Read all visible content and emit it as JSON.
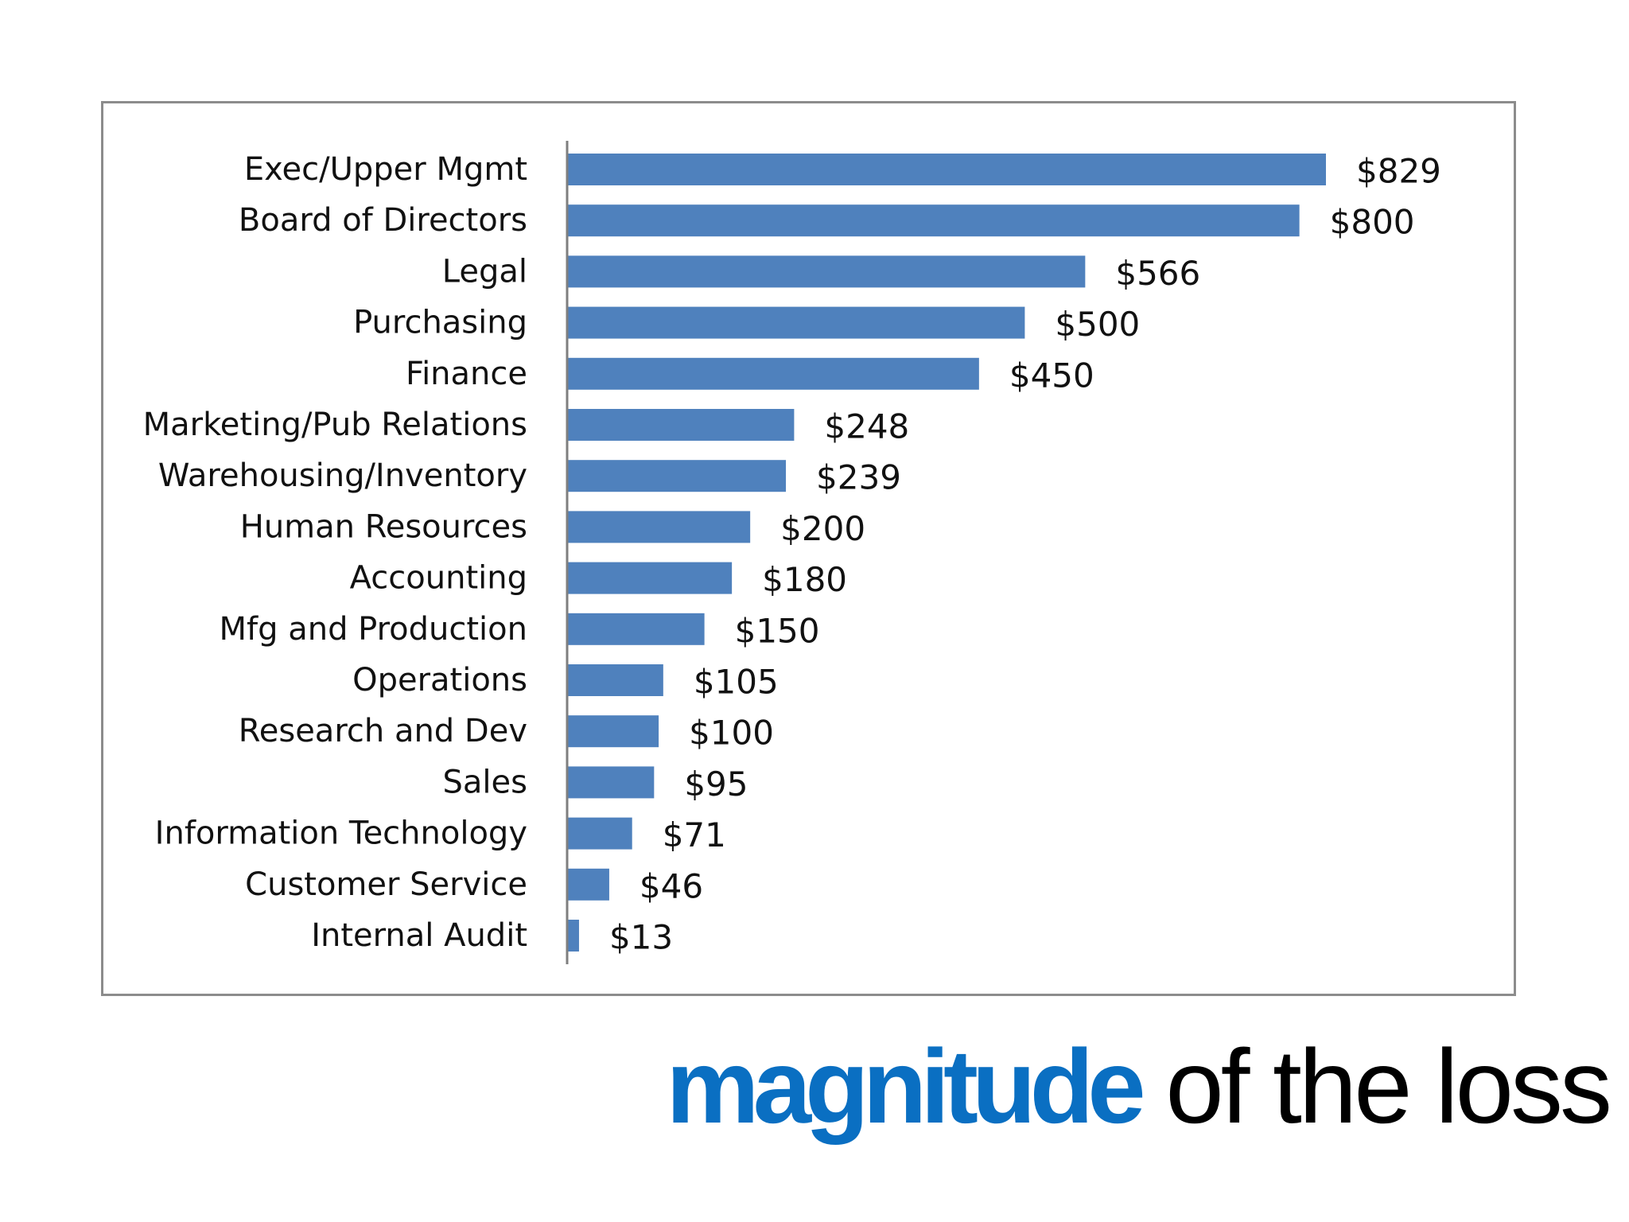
{
  "title": {
    "accent_text": "magnitude",
    "rest_text": "of the loss"
  },
  "colors": {
    "bar": "#4f81bd",
    "title_accent": "#0a6fc2",
    "frame": "#8c8c8c",
    "axis": "#7f7f7f"
  },
  "chart_data": {
    "type": "bar",
    "orientation": "horizontal",
    "categories": [
      "Exec/Upper Mgmt",
      "Board of Directors",
      "Legal",
      "Purchasing",
      "Finance",
      "Marketing/Pub Relations",
      "Warehousing/Inventory",
      "Human Resources",
      "Accounting",
      "Mfg and Production",
      "Operations",
      "Research and Dev",
      "Sales",
      "Information Technology",
      "Customer Service",
      "Internal Audit"
    ],
    "values": [
      829,
      800,
      566,
      500,
      450,
      248,
      239,
      200,
      180,
      150,
      105,
      100,
      95,
      71,
      46,
      13
    ],
    "value_labels": [
      "$829",
      "$800",
      "$566",
      "$500",
      "$450",
      "$248",
      "$239",
      "$200",
      "$180",
      "$150",
      "$105",
      "$100",
      "$95",
      "$71",
      "$46",
      "$13"
    ],
    "xlim": [
      0,
      829
    ],
    "grid": false,
    "legend": "none"
  }
}
